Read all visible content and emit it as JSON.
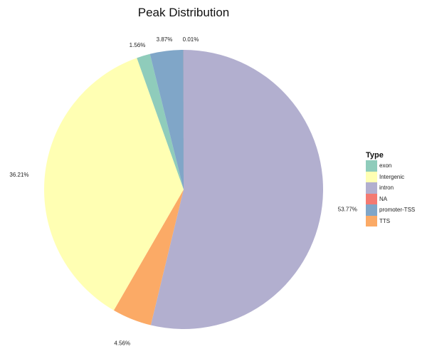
{
  "chart_data": {
    "type": "pie",
    "title": "Peak Distribution",
    "start": "top",
    "direction": "clockwise",
    "slices": [
      {
        "name": "intron",
        "value": 53.77,
        "label": "53.77%",
        "color": "#B2AFCF"
      },
      {
        "name": "TTS",
        "value": 4.56,
        "label": "4.56%",
        "color": "#FBAA66"
      },
      {
        "name": "Intergenic",
        "value": 36.21,
        "label": "36.21%",
        "color": "#FFFFB3"
      },
      {
        "name": "exon",
        "value": 1.56,
        "label": "1.56%",
        "color": "#8FCCBB"
      },
      {
        "name": "promoter-TSS",
        "value": 3.87,
        "label": "3.87%",
        "color": "#80A6C8"
      },
      {
        "name": "NA",
        "value": 0.01,
        "label": "0.01%",
        "color": "#F47A72"
      }
    ],
    "legend": {
      "title": "Type",
      "position": "right",
      "entries": [
        {
          "label": "exon",
          "color": "#8FCCBB"
        },
        {
          "label": "Intergenic",
          "color": "#FFFFB3"
        },
        {
          "label": "intron",
          "color": "#B2AFCF"
        },
        {
          "label": "NA",
          "color": "#F47A72"
        },
        {
          "label": "promoter-TSS",
          "color": "#80A6C8"
        },
        {
          "label": "TTS",
          "color": "#FBAA66"
        }
      ]
    }
  }
}
